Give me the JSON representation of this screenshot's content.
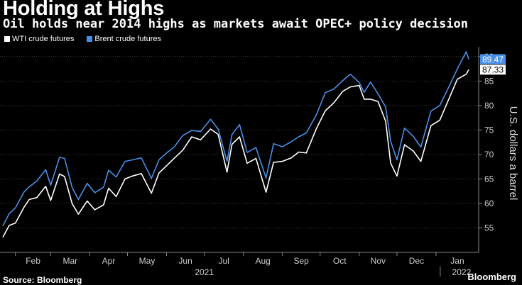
{
  "title": "Holding at Highs",
  "subtitle": "Oil holds near 2014 highs as markets await OPEC+ policy decision",
  "source": "Source: Bloomberg",
  "brand": "Bloomberg",
  "colors": {
    "wti": "#ffffff",
    "brent": "#4a8fe7",
    "grid": "#3a3a3a",
    "background": "#000000"
  },
  "chart_data": {
    "type": "line",
    "title": "Holding at Highs",
    "subtitle": "Oil holds near 2014 highs as markets await OPEC+ policy decision",
    "ylabel": "U.S. dollars a barrel",
    "ylim": [
      50,
      92
    ],
    "yticks": [
      55,
      60,
      65,
      70,
      75,
      80,
      85,
      90
    ],
    "grid": true,
    "legend_position": "top-left",
    "x_tick_labels": [
      "Feb",
      "Mar",
      "Apr",
      "May",
      "Jun",
      "Jul",
      "Aug",
      "Sep",
      "Oct",
      "Nov",
      "Dec",
      "Jan"
    ],
    "x_tick_dates": [
      "2021-02-01",
      "2021-03-01",
      "2021-04-01",
      "2021-05-01",
      "2021-06-01",
      "2021-07-01",
      "2021-08-01",
      "2021-09-01",
      "2021-10-01",
      "2021-11-01",
      "2021-12-01",
      "2022-01-01"
    ],
    "year_labels": [
      {
        "label": "2021",
        "date": "2021-07-01"
      },
      {
        "label": "2022",
        "date": "2022-01-01"
      }
    ],
    "x_range": [
      "2021-01-22",
      "2022-01-27"
    ],
    "series": [
      {
        "name": "WTI crude futures",
        "end_label": "87.33",
        "points": [
          [
            "2021-01-22",
            53.1
          ],
          [
            "2021-01-27",
            55.5
          ],
          [
            "2021-02-01",
            56.0
          ],
          [
            "2021-02-08",
            59.3
          ],
          [
            "2021-02-12",
            60.8
          ],
          [
            "2021-02-18",
            61.2
          ],
          [
            "2021-02-25",
            63.5
          ],
          [
            "2021-03-01",
            60.6
          ],
          [
            "2021-03-08",
            66.0
          ],
          [
            "2021-03-12",
            65.5
          ],
          [
            "2021-03-18",
            60.0
          ],
          [
            "2021-03-23",
            57.8
          ],
          [
            "2021-03-30",
            60.5
          ],
          [
            "2021-04-05",
            58.7
          ],
          [
            "2021-04-12",
            59.7
          ],
          [
            "2021-04-16",
            63.1
          ],
          [
            "2021-04-22",
            61.4
          ],
          [
            "2021-04-29",
            65.0
          ],
          [
            "2021-05-05",
            65.6
          ],
          [
            "2021-05-12",
            66.1
          ],
          [
            "2021-05-20",
            62.1
          ],
          [
            "2021-05-26",
            66.2
          ],
          [
            "2021-06-01",
            67.7
          ],
          [
            "2021-06-07",
            69.2
          ],
          [
            "2021-06-14",
            70.9
          ],
          [
            "2021-06-21",
            73.6
          ],
          [
            "2021-06-28",
            73.0
          ],
          [
            "2021-07-06",
            75.2
          ],
          [
            "2021-07-12",
            74.1
          ],
          [
            "2021-07-19",
            66.4
          ],
          [
            "2021-07-23",
            72.1
          ],
          [
            "2021-07-29",
            73.6
          ],
          [
            "2021-08-04",
            68.2
          ],
          [
            "2021-08-11",
            69.2
          ],
          [
            "2021-08-19",
            62.3
          ],
          [
            "2021-08-25",
            68.4
          ],
          [
            "2021-09-01",
            68.6
          ],
          [
            "2021-09-08",
            69.3
          ],
          [
            "2021-09-14",
            70.5
          ],
          [
            "2021-09-20",
            70.3
          ],
          [
            "2021-09-28",
            75.3
          ],
          [
            "2021-10-05",
            78.9
          ],
          [
            "2021-10-12",
            80.6
          ],
          [
            "2021-10-19",
            82.9
          ],
          [
            "2021-10-25",
            83.8
          ],
          [
            "2021-11-01",
            84.1
          ],
          [
            "2021-11-05",
            81.3
          ],
          [
            "2021-11-10",
            81.3
          ],
          [
            "2021-11-16",
            80.8
          ],
          [
            "2021-11-22",
            76.8
          ],
          [
            "2021-11-26",
            68.2
          ],
          [
            "2021-12-01",
            65.6
          ],
          [
            "2021-12-07",
            72.0
          ],
          [
            "2021-12-14",
            70.7
          ],
          [
            "2021-12-20",
            68.6
          ],
          [
            "2021-12-28",
            75.9
          ],
          [
            "2022-01-04",
            77.0
          ],
          [
            "2022-01-11",
            81.2
          ],
          [
            "2022-01-18",
            85.4
          ],
          [
            "2022-01-25",
            86.4
          ],
          [
            "2022-01-27",
            87.33
          ]
        ]
      },
      {
        "name": "Brent crude futures",
        "end_label": "89.47",
        "points": [
          [
            "2021-01-22",
            55.4
          ],
          [
            "2021-01-27",
            57.9
          ],
          [
            "2021-02-01",
            59.1
          ],
          [
            "2021-02-08",
            62.4
          ],
          [
            "2021-02-12",
            63.4
          ],
          [
            "2021-02-18",
            64.6
          ],
          [
            "2021-02-25",
            66.9
          ],
          [
            "2021-03-01",
            63.7
          ],
          [
            "2021-03-08",
            69.4
          ],
          [
            "2021-03-12",
            69.2
          ],
          [
            "2021-03-18",
            63.3
          ],
          [
            "2021-03-23",
            60.8
          ],
          [
            "2021-03-30",
            64.1
          ],
          [
            "2021-04-05",
            62.2
          ],
          [
            "2021-04-12",
            63.3
          ],
          [
            "2021-04-16",
            66.8
          ],
          [
            "2021-04-22",
            65.4
          ],
          [
            "2021-04-29",
            68.6
          ],
          [
            "2021-05-05",
            68.9
          ],
          [
            "2021-05-12",
            69.3
          ],
          [
            "2021-05-20",
            65.1
          ],
          [
            "2021-05-26",
            68.9
          ],
          [
            "2021-06-01",
            70.3
          ],
          [
            "2021-06-07",
            71.5
          ],
          [
            "2021-06-14",
            73.9
          ],
          [
            "2021-06-21",
            74.9
          ],
          [
            "2021-06-28",
            74.7
          ],
          [
            "2021-07-06",
            77.2
          ],
          [
            "2021-07-12",
            75.2
          ],
          [
            "2021-07-19",
            68.6
          ],
          [
            "2021-07-23",
            74.1
          ],
          [
            "2021-07-29",
            76.1
          ],
          [
            "2021-08-04",
            70.4
          ],
          [
            "2021-08-11",
            71.4
          ],
          [
            "2021-08-19",
            65.2
          ],
          [
            "2021-08-25",
            72.2
          ],
          [
            "2021-09-01",
            71.6
          ],
          [
            "2021-09-08",
            72.6
          ],
          [
            "2021-09-14",
            73.6
          ],
          [
            "2021-09-20",
            74.4
          ],
          [
            "2021-09-28",
            78.1
          ],
          [
            "2021-10-05",
            82.6
          ],
          [
            "2021-10-12",
            83.4
          ],
          [
            "2021-10-19",
            85.1
          ],
          [
            "2021-10-25",
            86.4
          ],
          [
            "2021-11-01",
            84.7
          ],
          [
            "2021-11-05",
            82.7
          ],
          [
            "2021-11-10",
            84.8
          ],
          [
            "2021-11-16",
            82.4
          ],
          [
            "2021-11-22",
            79.7
          ],
          [
            "2021-11-26",
            72.7
          ],
          [
            "2021-12-01",
            68.9
          ],
          [
            "2021-12-07",
            75.4
          ],
          [
            "2021-12-14",
            73.7
          ],
          [
            "2021-12-20",
            71.5
          ],
          [
            "2021-12-28",
            78.9
          ],
          [
            "2022-01-04",
            80.0
          ],
          [
            "2022-01-11",
            83.7
          ],
          [
            "2022-01-18",
            87.5
          ],
          [
            "2022-01-25",
            91.0
          ],
          [
            "2022-01-27",
            89.47
          ]
        ]
      }
    ]
  }
}
